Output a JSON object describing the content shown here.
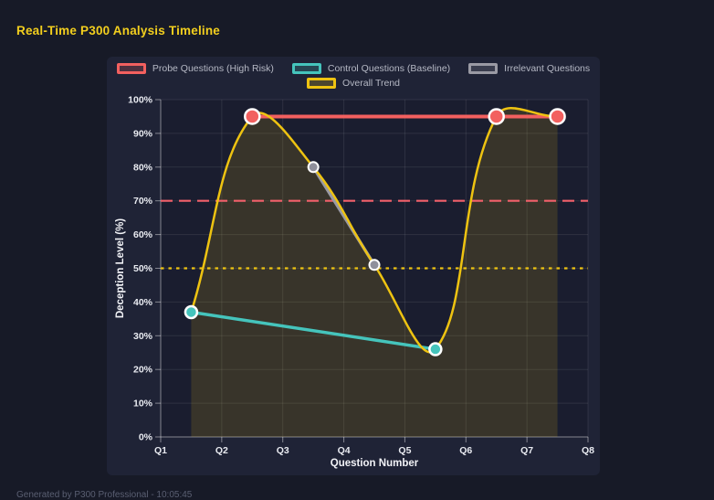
{
  "page": {
    "title": "Real-Time P300 Analysis Timeline",
    "footer": "Generated by P300 Professional - 10:05:45"
  },
  "colors": {
    "page_bg": "#171a27",
    "panel_bg": "#1f2336",
    "plot_bg": "#1a1d2f",
    "grid": "rgba(255,255,255,0.09)",
    "axis": "rgba(255,255,255,0.45)",
    "tick_text": "#e9ebf1",
    "axis_title_text": "#f2f3f7",
    "legend_text": "#b5b8c4",
    "title_text": "#f3cf1e",
    "footer_text": "#5a5f72",
    "point_border": "#ffffff"
  },
  "chart_data": {
    "type": "line",
    "title": "Real-Time P300 Analysis Timeline",
    "xlabel": "Question Number",
    "ylabel": "Deception Level (%)",
    "x_ticks": [
      "Q1",
      "Q2",
      "Q3",
      "Q4",
      "Q5",
      "Q6",
      "Q7",
      "Q8"
    ],
    "xlim": [
      1,
      8
    ],
    "ylim": [
      0,
      100
    ],
    "y_tick_step": 10,
    "y_tick_suffix": "%",
    "grid": true,
    "legend_position": "top",
    "legend_rows": [
      [
        0,
        1,
        2
      ],
      [
        3
      ]
    ],
    "series": [
      {
        "name": "Probe Questions (High Risk)",
        "color": "#f2605f",
        "points": [
          [
            2.5,
            95
          ],
          [
            6.5,
            95
          ],
          [
            7.5,
            95
          ]
        ],
        "line_width": 4,
        "point_radius": 8,
        "smooth": false,
        "fill": false
      },
      {
        "name": "Control Questions (Baseline)",
        "color": "#45c4bc",
        "points": [
          [
            1.5,
            37
          ],
          [
            5.5,
            26
          ]
        ],
        "line_width": 3.5,
        "point_radius": 6.5,
        "smooth": false,
        "fill": false
      },
      {
        "name": "Irrelevant Questions",
        "color": "#9a9aa4",
        "point_fill": "#8f8f9b",
        "points": [
          [
            3.5,
            80
          ],
          [
            4.5,
            51
          ]
        ],
        "line_width": 3.5,
        "point_radius": 5.5,
        "smooth": false,
        "fill": false
      },
      {
        "name": "Overall Trend",
        "color": "#eec311",
        "points": [
          [
            1.5,
            37
          ],
          [
            2.5,
            95
          ],
          [
            3.5,
            80
          ],
          [
            4.5,
            51
          ],
          [
            5.5,
            26
          ],
          [
            6.5,
            95
          ],
          [
            7.5,
            95
          ]
        ],
        "line_width": 2.5,
        "point_radius": 0,
        "smooth": true,
        "tension": 0.4,
        "fill": true,
        "fill_opacity": 0.14
      }
    ],
    "thresholds": [
      {
        "value": 70,
        "color": "#f2606b",
        "style": "dashed"
      },
      {
        "value": 50,
        "color": "#eec311",
        "style": "dotted"
      }
    ]
  }
}
